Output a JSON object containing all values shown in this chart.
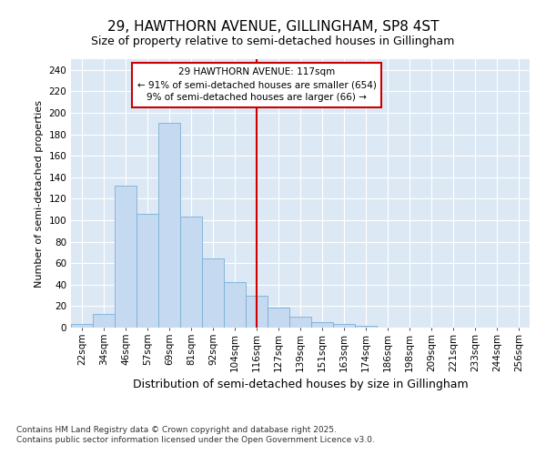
{
  "title": "29, HAWTHORN AVENUE, GILLINGHAM, SP8 4ST",
  "subtitle": "Size of property relative to semi-detached houses in Gillingham",
  "xlabel": "Distribution of semi-detached houses by size in Gillingham",
  "ylabel": "Number of semi-detached properties",
  "categories": [
    "22sqm",
    "34sqm",
    "46sqm",
    "57sqm",
    "69sqm",
    "81sqm",
    "92sqm",
    "104sqm",
    "116sqm",
    "127sqm",
    "139sqm",
    "151sqm",
    "163sqm",
    "174sqm",
    "186sqm",
    "198sqm",
    "209sqm",
    "221sqm",
    "233sqm",
    "244sqm",
    "256sqm"
  ],
  "values": [
    3,
    13,
    132,
    106,
    191,
    103,
    64,
    42,
    30,
    19,
    10,
    5,
    3,
    2,
    0,
    0,
    0,
    0,
    0,
    0,
    0
  ],
  "bar_color": "#c5d9f0",
  "bar_edge_color": "#7bafd4",
  "vline_x": 8,
  "annotation_text": "29 HAWTHORN AVENUE: 117sqm\n← 91% of semi-detached houses are smaller (654)\n9% of semi-detached houses are larger (66) →",
  "annotation_box_color": "#ffffff",
  "annotation_box_edge": "#cc0000",
  "vline_color": "#cc0000",
  "background_color": "#dce9f5",
  "plot_bg_color": "#dce9f5",
  "grid_color": "#ffffff",
  "footer_text": "Contains HM Land Registry data © Crown copyright and database right 2025.\nContains public sector information licensed under the Open Government Licence v3.0.",
  "ylim": [
    0,
    250
  ],
  "yticks": [
    0,
    20,
    40,
    60,
    80,
    100,
    120,
    140,
    160,
    180,
    200,
    220,
    240
  ],
  "title_fontsize": 11,
  "subtitle_fontsize": 9,
  "ylabel_fontsize": 8,
  "xlabel_fontsize": 9,
  "tick_fontsize": 7.5,
  "footer_fontsize": 6.5
}
